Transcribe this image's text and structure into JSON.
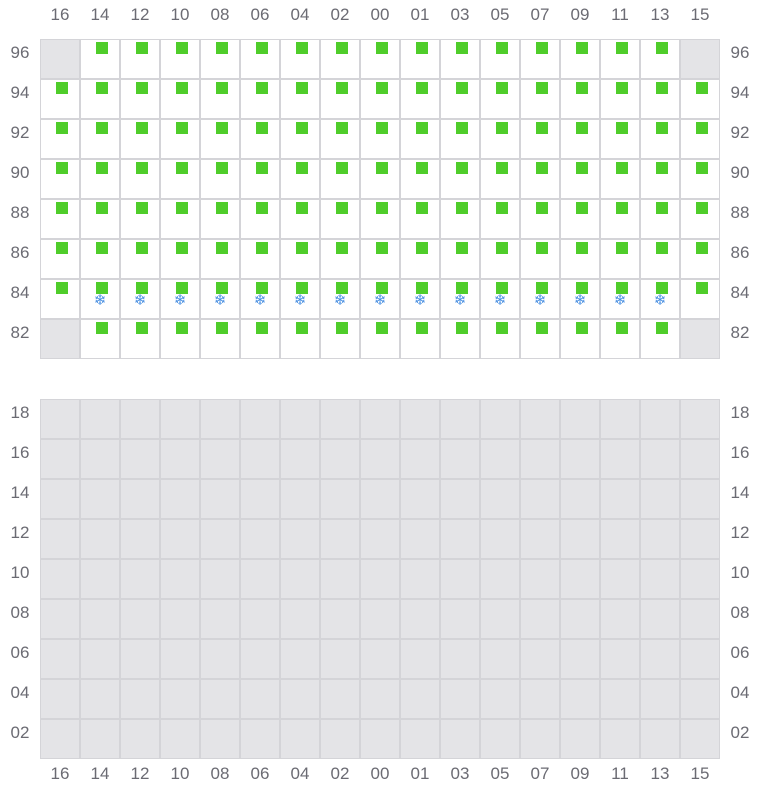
{
  "columns": [
    "16",
    "14",
    "12",
    "10",
    "08",
    "06",
    "04",
    "02",
    "00",
    "01",
    "03",
    "05",
    "07",
    "09",
    "11",
    "13",
    "15"
  ],
  "colors": {
    "available": "#4fcd2a",
    "snowflake": "#4a90e2",
    "disabled": "#e4e4e7",
    "gridline": "#d4d4d8",
    "label": "#6b6b73"
  },
  "legend_icons": {
    "available": "green-square",
    "frozen": "snowflake-icon"
  },
  "top_grid": {
    "rows": [
      {
        "label": "96",
        "cells": [
          "disabled",
          "ok",
          "ok",
          "ok",
          "ok",
          "ok",
          "ok",
          "ok",
          "ok",
          "ok",
          "ok",
          "ok",
          "ok",
          "ok",
          "ok",
          "ok",
          "disabled"
        ]
      },
      {
        "label": "94",
        "cells": [
          "ok",
          "ok",
          "ok",
          "ok",
          "ok",
          "ok",
          "ok",
          "ok",
          "ok",
          "ok",
          "ok",
          "ok",
          "ok",
          "ok",
          "ok",
          "ok",
          "ok"
        ]
      },
      {
        "label": "92",
        "cells": [
          "ok",
          "ok",
          "ok",
          "ok",
          "ok",
          "ok",
          "ok",
          "ok",
          "ok",
          "ok",
          "ok",
          "ok",
          "ok",
          "ok",
          "ok",
          "ok",
          "ok"
        ]
      },
      {
        "label": "90",
        "cells": [
          "ok",
          "ok",
          "ok",
          "ok",
          "ok",
          "ok",
          "ok",
          "ok",
          "ok",
          "ok",
          "ok",
          "ok",
          "ok",
          "ok",
          "ok",
          "ok",
          "ok"
        ]
      },
      {
        "label": "88",
        "cells": [
          "ok",
          "ok",
          "ok",
          "ok",
          "ok",
          "ok",
          "ok",
          "ok",
          "ok",
          "ok",
          "ok",
          "ok",
          "ok",
          "ok",
          "ok",
          "ok",
          "ok"
        ]
      },
      {
        "label": "86",
        "cells": [
          "ok",
          "ok",
          "ok",
          "ok",
          "ok",
          "ok",
          "ok",
          "ok",
          "ok",
          "ok",
          "ok",
          "ok",
          "ok",
          "ok",
          "ok",
          "ok",
          "ok"
        ]
      },
      {
        "label": "84",
        "cells": [
          "ok",
          "ok-snow",
          "ok-snow",
          "ok-snow",
          "ok-snow",
          "ok-snow",
          "ok-snow",
          "ok-snow",
          "ok-snow",
          "ok-snow",
          "ok-snow",
          "ok-snow",
          "ok-snow",
          "ok-snow",
          "ok-snow",
          "ok-snow",
          "ok"
        ]
      },
      {
        "label": "82",
        "cells": [
          "disabled",
          "ok",
          "ok",
          "ok",
          "ok",
          "ok",
          "ok",
          "ok",
          "ok",
          "ok",
          "ok",
          "ok",
          "ok",
          "ok",
          "ok",
          "ok",
          "disabled"
        ]
      }
    ]
  },
  "bottom_grid": {
    "rows": [
      {
        "label": "18",
        "state": "disabled"
      },
      {
        "label": "16",
        "state": "disabled"
      },
      {
        "label": "14",
        "state": "disabled"
      },
      {
        "label": "12",
        "state": "disabled"
      },
      {
        "label": "10",
        "state": "disabled"
      },
      {
        "label": "08",
        "state": "disabled"
      },
      {
        "label": "06",
        "state": "disabled"
      },
      {
        "label": "04",
        "state": "disabled"
      },
      {
        "label": "02",
        "state": "disabled"
      }
    ]
  },
  "snowflake_glyph": "❄"
}
